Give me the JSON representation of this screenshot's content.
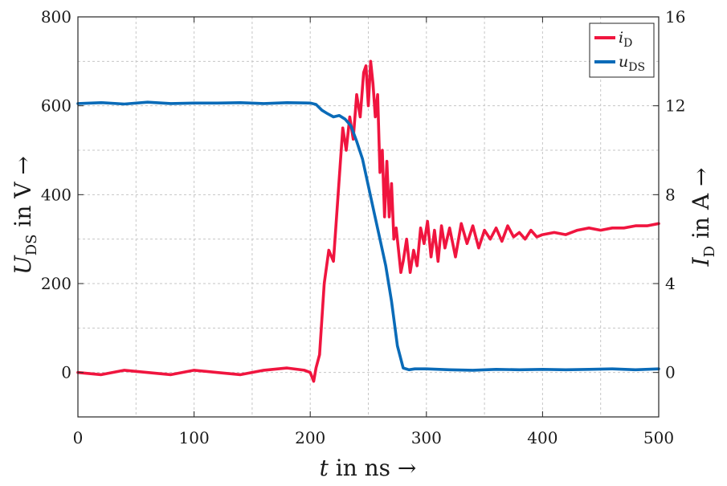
{
  "chart_data": {
    "type": "line",
    "xlabel": "t in ns →",
    "ylabel_left": "U_DS in V →",
    "ylabel_right": "I_D in A →",
    "xlim": [
      0,
      500
    ],
    "ylim_left": [
      -100,
      800
    ],
    "ylim_right": [
      -2,
      16
    ],
    "x_ticks": [
      0,
      100,
      200,
      300,
      400,
      500
    ],
    "y_ticks_left": [
      0,
      200,
      400,
      600,
      800
    ],
    "y_ticks_right": [
      0,
      4,
      8,
      12,
      16
    ],
    "grid": true,
    "legend_position": "top-right",
    "series": [
      {
        "name": "i_D",
        "axis": "right",
        "color": "#f0153f",
        "x": [
          0,
          20,
          40,
          60,
          80,
          100,
          120,
          140,
          160,
          180,
          195,
          200,
          203,
          205,
          208,
          212,
          216,
          220,
          224,
          228,
          231,
          234,
          237,
          240,
          243,
          246,
          248,
          250,
          252,
          254,
          256,
          258,
          260,
          262,
          264,
          266,
          268,
          270,
          272,
          274,
          276,
          278,
          280,
          283,
          286,
          289,
          292,
          295,
          298,
          301,
          304,
          307,
          310,
          313,
          316,
          320,
          325,
          330,
          335,
          340,
          345,
          350,
          355,
          360,
          365,
          370,
          375,
          380,
          385,
          390,
          395,
          400,
          410,
          420,
          430,
          440,
          450,
          460,
          470,
          480,
          490,
          500
        ],
        "values": [
          0.0,
          -0.1,
          0.1,
          0.0,
          -0.1,
          0.1,
          0.0,
          -0.1,
          0.1,
          0.2,
          0.1,
          0.0,
          -0.4,
          0.2,
          0.8,
          4.0,
          5.5,
          5.0,
          8.0,
          11.0,
          10.0,
          11.5,
          10.5,
          12.5,
          11.5,
          13.5,
          13.8,
          12.0,
          14.0,
          13.0,
          11.5,
          12.5,
          9.0,
          10.0,
          7.0,
          9.5,
          7.0,
          8.5,
          6.0,
          6.5,
          5.5,
          4.5,
          5.0,
          6.0,
          4.5,
          5.5,
          4.8,
          6.5,
          5.8,
          6.8,
          5.2,
          6.4,
          5.0,
          6.6,
          5.6,
          6.5,
          5.2,
          6.7,
          5.8,
          6.6,
          5.6,
          6.4,
          6.0,
          6.5,
          5.9,
          6.6,
          6.1,
          6.3,
          6.0,
          6.4,
          6.1,
          6.2,
          6.3,
          6.2,
          6.4,
          6.5,
          6.4,
          6.5,
          6.5,
          6.6,
          6.6,
          6.7
        ]
      },
      {
        "name": "u_DS",
        "axis": "left",
        "color": "#0a6bb8",
        "x": [
          0,
          20,
          40,
          60,
          80,
          100,
          120,
          140,
          160,
          180,
          200,
          205,
          210,
          215,
          220,
          225,
          230,
          235,
          240,
          245,
          250,
          255,
          260,
          265,
          270,
          275,
          280,
          285,
          290,
          300,
          320,
          340,
          360,
          380,
          400,
          420,
          440,
          460,
          480,
          500
        ],
        "values": [
          605,
          607,
          604,
          608,
          605,
          606,
          606,
          607,
          605,
          607,
          606,
          603,
          590,
          582,
          575,
          578,
          570,
          555,
          520,
          480,
          420,
          360,
          300,
          240,
          160,
          60,
          10,
          6,
          8,
          8,
          6,
          5,
          7,
          6,
          7,
          6,
          7,
          8,
          6,
          8
        ]
      }
    ]
  }
}
